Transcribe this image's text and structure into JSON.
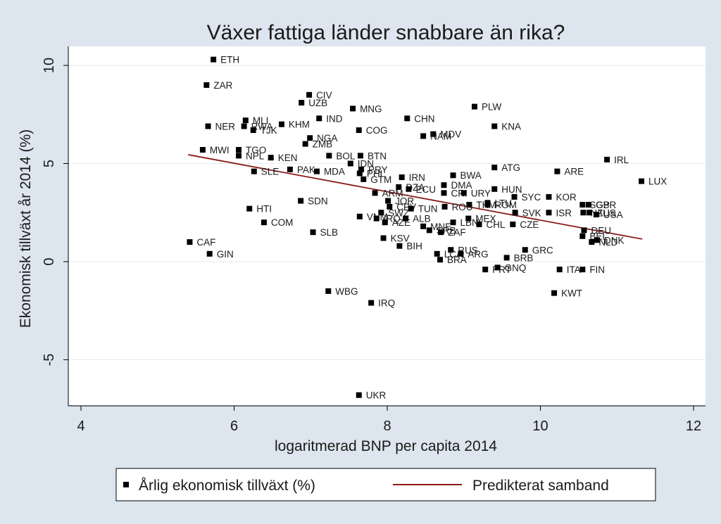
{
  "chart_data": {
    "type": "scatter",
    "title": "Växer fattiga länder snabbare än rika?",
    "xlabel": "logaritmerad BNP per capita 2014",
    "ylabel": "Ekonomisk tillväxt år 2014 (%)",
    "xlim": [
      4,
      12
    ],
    "ylim": [
      -7.5,
      11
    ],
    "xticks": [
      4,
      6,
      8,
      10,
      12
    ],
    "yticks": [
      -5,
      0,
      5,
      10
    ],
    "ytick_labels": [
      "-5",
      "0",
      "5",
      "10"
    ],
    "grid": "horizontal",
    "legend": {
      "position": "bottom",
      "entries": [
        "Årlig ekonomisk tillväxt (%)",
        "Predikterat samband"
      ]
    },
    "colors": {
      "background": "#dde6ee",
      "plot_background": "#ffffff",
      "marker": "#000000",
      "fit_line": "#8b1a1a",
      "grid": "#e6ebef"
    },
    "series": [
      {
        "name": "Årlig ekonomisk tillväxt (%)",
        "kind": "scatter",
        "points": [
          {
            "label": "ETH",
            "x": 5.73,
            "y": 10.3
          },
          {
            "label": "ZAR",
            "x": 5.64,
            "y": 9.0
          },
          {
            "label": "CIV",
            "x": 6.98,
            "y": 8.5
          },
          {
            "label": "UZB",
            "x": 6.88,
            "y": 8.1
          },
          {
            "label": "MNG",
            "x": 7.55,
            "y": 7.8
          },
          {
            "label": "PLW",
            "x": 9.14,
            "y": 7.9
          },
          {
            "label": "MLI",
            "x": 6.15,
            "y": 7.2
          },
          {
            "label": "NER",
            "x": 5.66,
            "y": 6.9
          },
          {
            "label": "RWA",
            "x": 6.13,
            "y": 6.9
          },
          {
            "label": "TJK",
            "x": 6.25,
            "y": 6.7
          },
          {
            "label": "KHM",
            "x": 6.62,
            "y": 7.0
          },
          {
            "label": "IND",
            "x": 7.11,
            "y": 7.3
          },
          {
            "label": "CHN",
            "x": 8.26,
            "y": 7.3
          },
          {
            "label": "COG",
            "x": 7.63,
            "y": 6.7
          },
          {
            "label": "KNA",
            "x": 9.4,
            "y": 6.9
          },
          {
            "label": "MDV",
            "x": 8.6,
            "y": 6.5
          },
          {
            "label": "NAM",
            "x": 8.47,
            "y": 6.4
          },
          {
            "label": "NGA",
            "x": 6.99,
            "y": 6.3
          },
          {
            "label": "ZMB",
            "x": 6.93,
            "y": 6.0
          },
          {
            "label": "MWI",
            "x": 5.59,
            "y": 5.7
          },
          {
            "label": "TGO",
            "x": 6.06,
            "y": 5.7
          },
          {
            "label": "NPL",
            "x": 6.06,
            "y": 5.4
          },
          {
            "label": "KEN",
            "x": 6.48,
            "y": 5.3
          },
          {
            "label": "BOL",
            "x": 7.24,
            "y": 5.4
          },
          {
            "label": "BTN",
            "x": 7.65,
            "y": 5.4
          },
          {
            "label": "IRL",
            "x": 10.87,
            "y": 5.2
          },
          {
            "label": "IDN",
            "x": 7.52,
            "y": 5.0
          },
          {
            "label": "LUX",
            "x": 11.32,
            "y": 4.1
          },
          {
            "label": "SLE",
            "x": 6.26,
            "y": 4.6
          },
          {
            "label": "PAK",
            "x": 6.73,
            "y": 4.7
          },
          {
            "label": "MDA",
            "x": 7.08,
            "y": 4.6
          },
          {
            "label": "PRY",
            "x": 7.66,
            "y": 4.7
          },
          {
            "label": "PHL",
            "x": 7.64,
            "y": 4.5
          },
          {
            "label": "GTM",
            "x": 7.69,
            "y": 4.2
          },
          {
            "label": "IRN",
            "x": 8.19,
            "y": 4.3
          },
          {
            "label": "BWA",
            "x": 8.86,
            "y": 4.4
          },
          {
            "label": "ATG",
            "x": 9.4,
            "y": 4.8
          },
          {
            "label": "ARE",
            "x": 10.22,
            "y": 4.6
          },
          {
            "label": "DZA",
            "x": 8.15,
            "y": 3.8
          },
          {
            "label": "ECU",
            "x": 8.28,
            "y": 3.7
          },
          {
            "label": "DMA",
            "x": 8.74,
            "y": 3.9
          },
          {
            "label": "CRI",
            "x": 8.74,
            "y": 3.5
          },
          {
            "label": "URY",
            "x": 9.0,
            "y": 3.5
          },
          {
            "label": "HUN",
            "x": 9.4,
            "y": 3.7
          },
          {
            "label": "ARM",
            "x": 7.84,
            "y": 3.5
          },
          {
            "label": "SYC",
            "x": 9.66,
            "y": 3.3
          },
          {
            "label": "KOR",
            "x": 10.11,
            "y": 3.3
          },
          {
            "label": "JOR",
            "x": 8.01,
            "y": 3.1
          },
          {
            "label": "SDN",
            "x": 6.87,
            "y": 3.1
          },
          {
            "label": "LTU",
            "x": 9.31,
            "y": 3.0
          },
          {
            "label": "TKM",
            "x": 9.07,
            "y": 2.9
          },
          {
            "label": "ROM",
            "x": 9.31,
            "y": 2.9
          },
          {
            "label": "GBR",
            "x": 10.63,
            "y": 2.9
          },
          {
            "label": "SGP",
            "x": 10.55,
            "y": 2.9
          },
          {
            "label": "HTI",
            "x": 6.2,
            "y": 2.7
          },
          {
            "label": "CPV",
            "x": 8.03,
            "y": 2.8
          },
          {
            "label": "TUN",
            "x": 8.31,
            "y": 2.7
          },
          {
            "label": "ROU",
            "x": 8.75,
            "y": 2.8
          },
          {
            "label": "SWZ",
            "x": 7.92,
            "y": 2.5
          },
          {
            "label": "SVK",
            "x": 9.67,
            "y": 2.5
          },
          {
            "label": "ISR",
            "x": 10.11,
            "y": 2.5
          },
          {
            "label": "NZL",
            "x": 10.56,
            "y": 2.5
          },
          {
            "label": "AUS",
            "x": 10.64,
            "y": 2.5
          },
          {
            "label": "USA",
            "x": 10.73,
            "y": 2.4
          },
          {
            "label": "COM",
            "x": 6.39,
            "y": 2.0
          },
          {
            "label": "VNM",
            "x": 7.64,
            "y": 2.3
          },
          {
            "label": "IRQ",
            "x": 7.86,
            "y": 2.2
          },
          {
            "label": "AZE",
            "x": 7.97,
            "y": 2.0
          },
          {
            "label": "ALB",
            "x": 8.24,
            "y": 2.2
          },
          {
            "label": "MEX",
            "x": 9.06,
            "y": 2.2
          },
          {
            "label": "LBN",
            "x": 8.86,
            "y": 2.0
          },
          {
            "label": "CHL",
            "x": 9.2,
            "y": 1.9
          },
          {
            "label": "CZE",
            "x": 9.64,
            "y": 1.9
          },
          {
            "label": "MNE",
            "x": 8.47,
            "y": 1.8
          },
          {
            "label": "SLB",
            "x": 7.03,
            "y": 1.5
          },
          {
            "label": "SRB",
            "x": 8.55,
            "y": 1.6
          },
          {
            "label": "ZAF",
            "x": 8.7,
            "y": 1.5
          },
          {
            "label": "DEU",
            "x": 10.57,
            "y": 1.6
          },
          {
            "label": "BEL",
            "x": 10.55,
            "y": 1.3
          },
          {
            "label": "DNK",
            "x": 10.74,
            "y": 1.1
          },
          {
            "label": "NLD",
            "x": 10.67,
            "y": 1.0
          },
          {
            "label": "KSV",
            "x": 7.95,
            "y": 1.2
          },
          {
            "label": "CAF",
            "x": 5.42,
            "y": 1.0
          },
          {
            "label": "BIH",
            "x": 8.16,
            "y": 0.8
          },
          {
            "label": "GRC",
            "x": 9.8,
            "y": 0.6
          },
          {
            "label": "RUS",
            "x": 8.83,
            "y": 0.6
          },
          {
            "label": "LCA",
            "x": 8.65,
            "y": 0.4
          },
          {
            "label": "ARG",
            "x": 8.96,
            "y": 0.4
          },
          {
            "label": "GIN",
            "x": 5.68,
            "y": 0.4
          },
          {
            "label": "BRB",
            "x": 9.56,
            "y": 0.2
          },
          {
            "label": "BRA",
            "x": 8.69,
            "y": 0.1
          },
          {
            "label": "PRT",
            "x": 9.28,
            "y": -0.4
          },
          {
            "label": "GNQ",
            "x": 9.44,
            "y": -0.3
          },
          {
            "label": "ITA",
            "x": 10.25,
            "y": -0.4
          },
          {
            "label": "FIN",
            "x": 10.55,
            "y": -0.4
          },
          {
            "label": "WBG",
            "x": 7.23,
            "y": -1.5
          },
          {
            "label": "KWT",
            "x": 10.18,
            "y": -1.6
          },
          {
            "label": "IRQ",
            "x": 7.79,
            "y": -2.1
          },
          {
            "label": "UKR",
            "x": 7.63,
            "y": -6.8
          }
        ]
      },
      {
        "name": "Predikterat samband",
        "kind": "line",
        "x": [
          5.4,
          11.33
        ],
        "y": [
          5.45,
          1.15
        ]
      }
    ]
  }
}
